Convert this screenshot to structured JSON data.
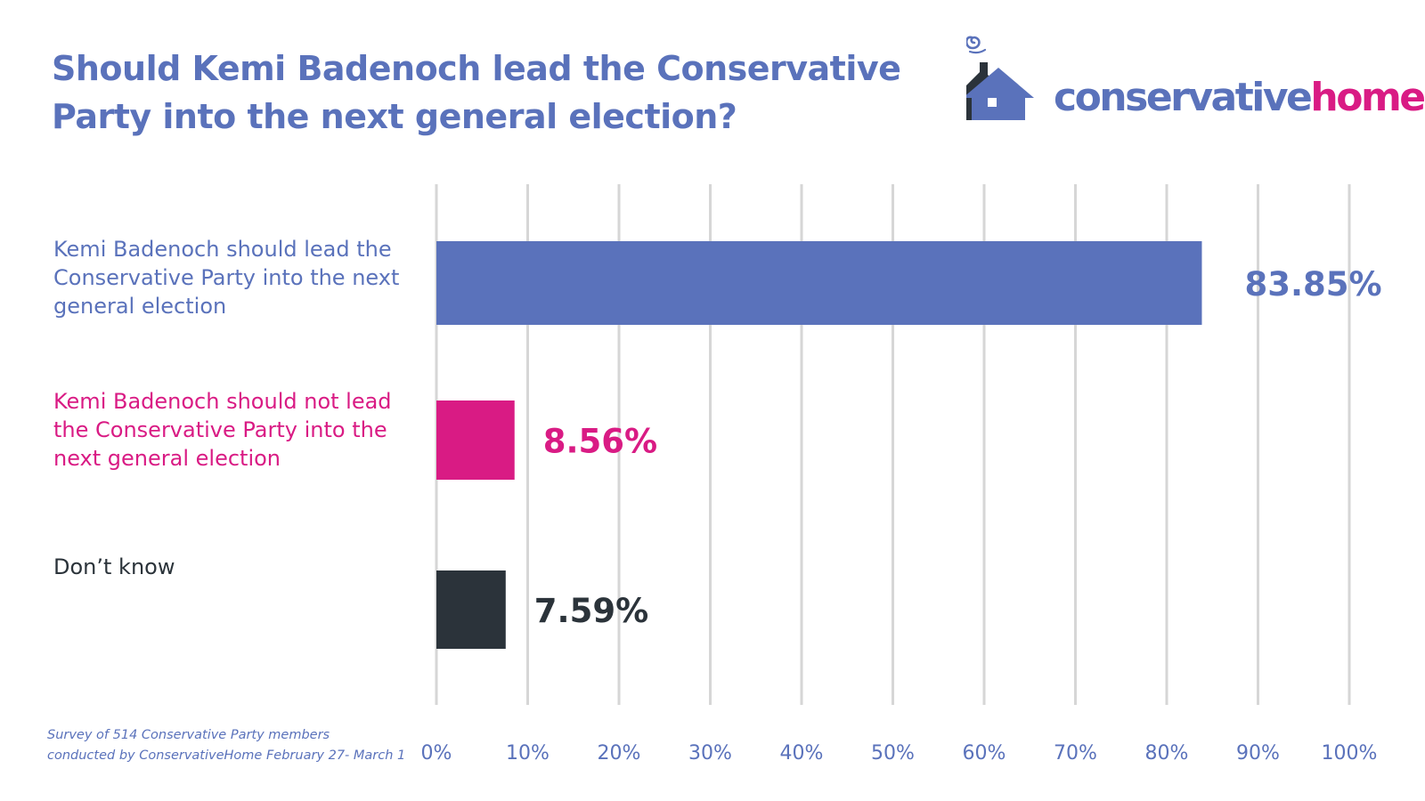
{
  "title": "Should Kemi Badenoch lead the Conservative Party into the next general election?",
  "logo": {
    "text_main": "conservative",
    "text_accent": "home",
    "icon": "house-with-smoke-icon"
  },
  "colors": {
    "blue": "#5a72bb",
    "pink": "#d91b84",
    "dark": "#2b333a",
    "grid": "#d6d6d6"
  },
  "footnote": {
    "line1": "Survey of 514 Conservative Party members",
    "line2": "conducted by ConservativeHome February 27- March 1"
  },
  "chart_data": {
    "type": "bar",
    "orientation": "horizontal",
    "title": "Should Kemi Badenoch lead the Conservative Party into the next general election?",
    "categories": [
      "Kemi Badenoch should lead the Conservative Party into the next general election",
      "Kemi Badenoch should not lead the Conservative Party into the next general election",
      "Don’t know"
    ],
    "values": [
      83.85,
      8.56,
      7.59
    ],
    "value_labels": [
      "83.85%",
      "8.56%",
      "7.59%"
    ],
    "bar_colors": [
      "#5a72bb",
      "#d91b84",
      "#2b333a"
    ],
    "xlim": [
      0,
      100
    ],
    "xticks": [
      0,
      10,
      20,
      30,
      40,
      50,
      60,
      70,
      80,
      90,
      100
    ],
    "xtick_labels": [
      "0%",
      "10%",
      "20%",
      "30%",
      "40%",
      "50%",
      "60%",
      "70%",
      "80%",
      "90%",
      "100%"
    ],
    "grid": true,
    "xlabel": "",
    "ylabel": ""
  }
}
